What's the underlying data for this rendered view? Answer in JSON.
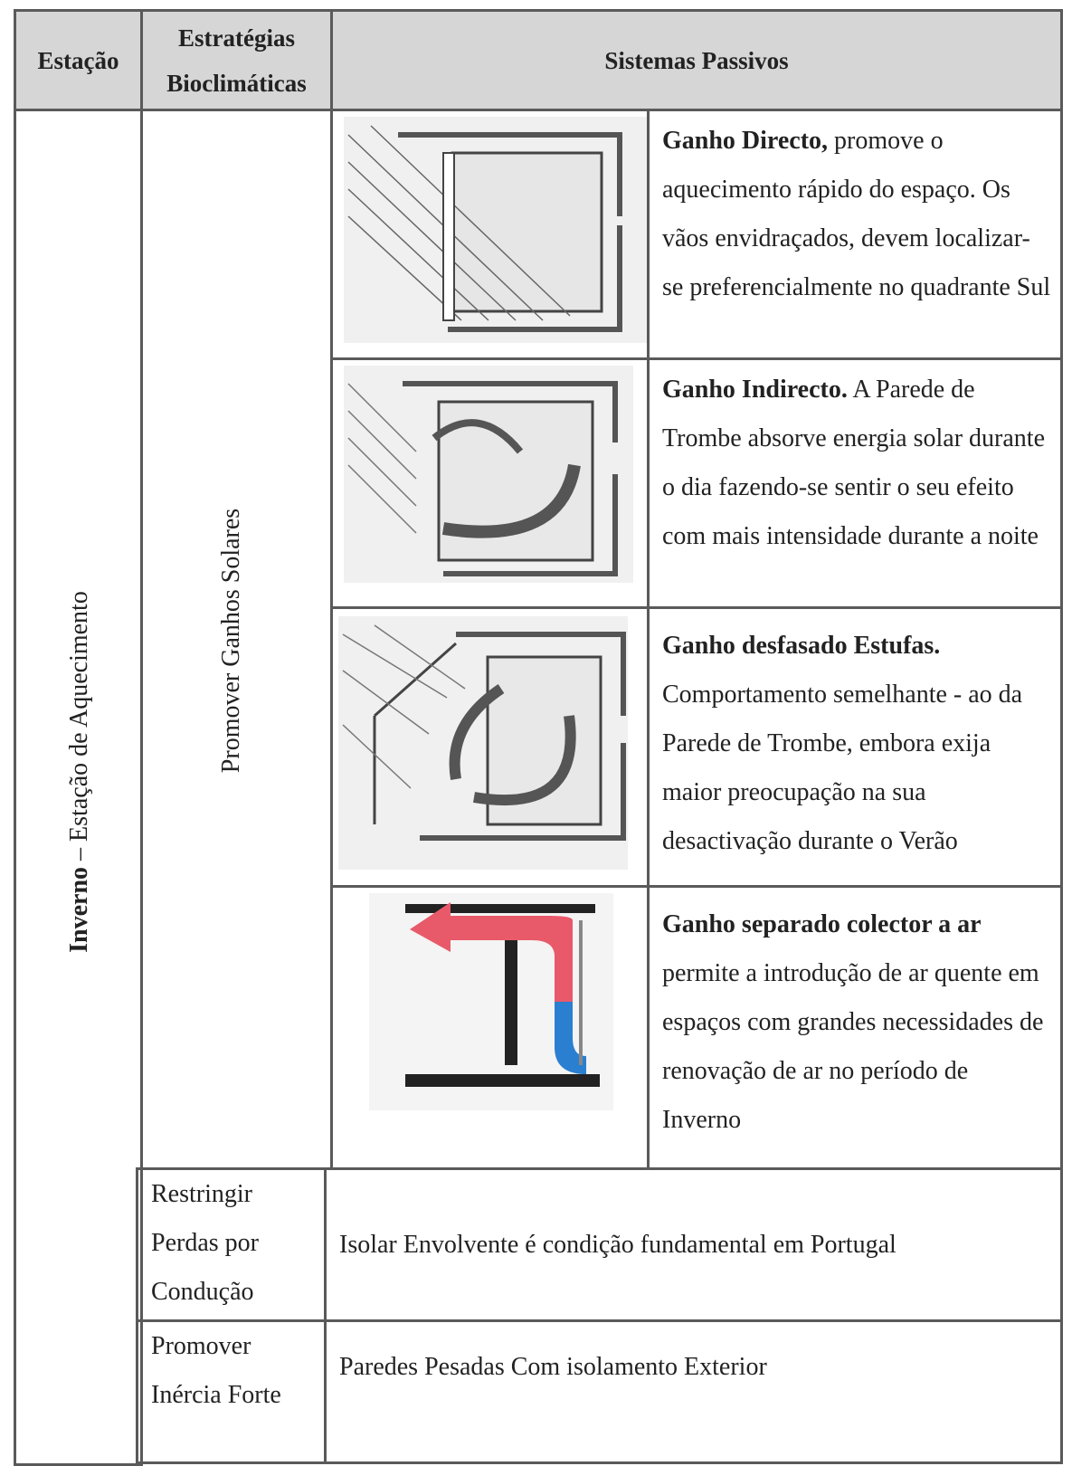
{
  "header": {
    "season": "Estação",
    "strategies": [
      "Estratégias",
      "Bioclimáticas"
    ],
    "systems": "Sistemas Passivos"
  },
  "season": {
    "name": "Inverno",
    "label": "– Estação de Aquecimento"
  },
  "rows": [
    {
      "strategy": "Promover Ganhos Solares",
      "systems": [
        {
          "title": "Ganho Directo,",
          "text": "promove o aquecimento rápido do espaço. Os vãos envidraçados, devem localizar-se preferencialmente no quadrante Sul"
        },
        {
          "title": "Ganho Indirecto.",
          "text": "A Parede de Trombe absorve energia solar durante o dia fazendo-se sentir o seu efeito com mais intensidade durante a noite"
        },
        {
          "title": "Ganho desfasado Estufas.",
          "text": "Comportamento semelhante - ao da Parede de Trombe, embora exija maior preocupação na sua desactivação durante o Verão"
        },
        {
          "title": "Ganho separado colector a ar",
          "text": "permite a introdução de ar quente em espaços com grandes necessidades de renovação de ar no período de Inverno"
        }
      ]
    },
    {
      "strategy": "Restringir Perdas por Condução",
      "system": "Isolar Envolvente é condição fundamental em Portugal"
    },
    {
      "strategy": "Promover Inércia Forte",
      "system": "Paredes Pesadas Com isolamento Exterior"
    }
  ]
}
